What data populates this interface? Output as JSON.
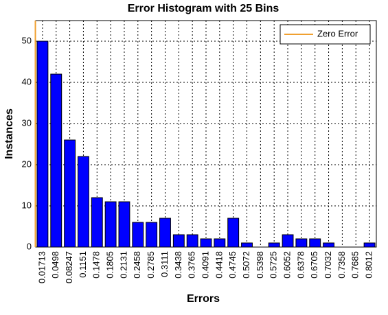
{
  "chart_data": {
    "type": "bar",
    "title": "Error Histogram with 25 Bins",
    "x_label": "Errors",
    "y_label": "Instances",
    "categories": [
      "0.01713",
      "0.0498",
      "0.08247",
      "0.1151",
      "0.1478",
      "0.1805",
      "0.2131",
      "0.2458",
      "0.2785",
      "0.3111",
      "0.3438",
      "0.3765",
      "0.4091",
      "0.4418",
      "0.4745",
      "0.5072",
      "0.5398",
      "0.5725",
      "0.6052",
      "0.6378",
      "0.6705",
      "0.7032",
      "0.7358",
      "0.7685",
      "0.8012"
    ],
    "values": [
      50,
      42,
      26,
      22,
      12,
      11,
      11,
      6,
      6,
      7,
      3,
      3,
      2,
      2,
      7,
      1,
      0,
      1,
      3,
      2,
      2,
      1,
      0,
      0,
      1
    ],
    "color": "#0000ff",
    "reference_line": {
      "name": "Zero Error",
      "color": "#f0a030",
      "x": 0
    },
    "ylim": [
      0,
      55
    ],
    "yticks": [
      0,
      10,
      20,
      30,
      40,
      50
    ],
    "grid": true
  }
}
